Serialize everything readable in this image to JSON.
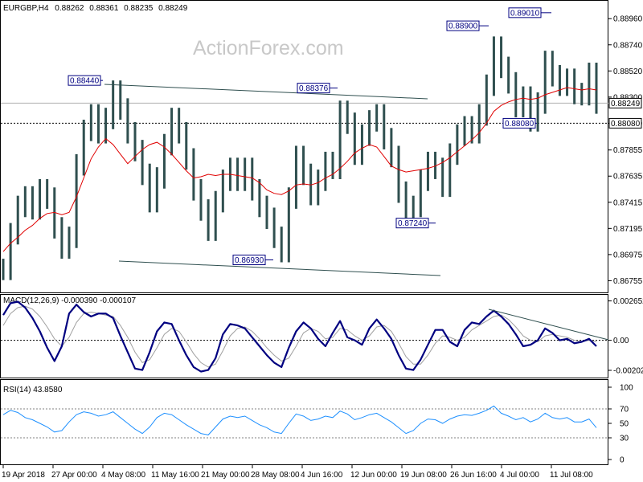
{
  "chart_data": [
    {
      "type": "line",
      "panel": "price",
      "title": "EURGBP,H4",
      "ohlc": {
        "open": "0.88262",
        "high": "0.88361",
        "low": "0.88235",
        "close": "0.88249"
      },
      "watermark": "ActionForex.com",
      "ylim": [
        0.8667,
        0.8909
      ],
      "yticks": [
        "0.88960",
        "0.88740",
        "0.88520",
        "0.88300",
        "0.88080",
        "0.87855",
        "0.87635",
        "0.87415",
        "0.87195",
        "0.86975",
        "0.86755"
      ],
      "current_price": "0.88249",
      "reference_level": "0.88080",
      "x_labels": [
        "19 Apr 2018",
        "27 Apr 00:00",
        "4 May 08:00",
        "11 May 16:00",
        "21 May 00:00",
        "28 May 08:00",
        "4 Jun 16:00",
        "12 Jun 00:00",
        "19 Jun 08:00",
        "26 Jun 16:00",
        "4 Jul 00:00",
        "11 Jul 08:00"
      ],
      "series": [
        {
          "values": [
            0.8685,
            0.8715,
            0.8738,
            0.8746,
            0.8736,
            0.8752,
            0.8745,
            0.872,
            0.8703,
            0.8712,
            0.8773,
            0.8802,
            0.8815,
            0.88,
            0.8812,
            0.8835,
            0.882,
            0.88,
            0.8785,
            0.8765,
            0.8742,
            0.8762,
            0.879,
            0.8812,
            0.88,
            0.8778,
            0.8752,
            0.8735,
            0.8718,
            0.8742,
            0.876,
            0.877,
            0.876,
            0.877,
            0.8752,
            0.8738,
            0.8728,
            0.8712,
            0.87,
            0.8745,
            0.878,
            0.8765,
            0.8748,
            0.876,
            0.8775,
            0.877,
            0.8818,
            0.8808,
            0.8782,
            0.8798,
            0.881,
            0.8815,
            0.8795,
            0.878,
            0.875,
            0.873,
            0.8738,
            0.876,
            0.8775,
            0.877,
            0.8755,
            0.8782,
            0.8798,
            0.8805,
            0.88,
            0.8815,
            0.884,
            0.8872,
            0.8855,
            0.8842,
            0.8822,
            0.883,
            0.881,
            0.8825,
            0.886,
            0.8848,
            0.884,
            0.8845,
            0.8833,
            0.8832,
            0.885,
            0.8825
          ]
        },
        {
          "values": [
            0.87,
            0.8707,
            0.8712,
            0.8718,
            0.8722,
            0.8728,
            0.8732,
            0.8733,
            0.8731,
            0.8733,
            0.8746,
            0.8762,
            0.8778,
            0.8788,
            0.8795,
            0.879,
            0.8782,
            0.8774,
            0.878,
            0.8786,
            0.879,
            0.8792,
            0.8788,
            0.8782,
            0.8775,
            0.8768,
            0.8762,
            0.8763,
            0.8765,
            0.8764,
            0.8765,
            0.8765,
            0.8764,
            0.8763,
            0.8762,
            0.8758,
            0.8752,
            0.8749,
            0.8748,
            0.8751,
            0.8756,
            0.8757,
            0.8756,
            0.8758,
            0.8762,
            0.8765,
            0.877,
            0.8776,
            0.8783,
            0.8787,
            0.879,
            0.8788,
            0.878,
            0.8772,
            0.8769,
            0.8767,
            0.8768,
            0.8769,
            0.877,
            0.8772,
            0.8775,
            0.8779,
            0.8784,
            0.8789,
            0.8794,
            0.88,
            0.8808,
            0.8818,
            0.8823,
            0.8826,
            0.8828,
            0.8829,
            0.8828,
            0.8829,
            0.8832,
            0.8834,
            0.8836,
            0.8838,
            0.8837,
            0.8836,
            0.8837,
            0.8836
          ]
        }
      ],
      "annotations": [
        "0.88440",
        "0.88376",
        "0.88900",
        "0.89010",
        "0.86930",
        "0.87240",
        "0.88080"
      ]
    },
    {
      "type": "line",
      "panel": "macd",
      "title": "MACD(12,26,9) -0.000390 -0.000107",
      "ylim": [
        -0.0024,
        0.0029
      ],
      "yticks": [
        "0.002652",
        "0.00",
        "-0.002021"
      ],
      "series": [
        {
          "values": [
            0.0017,
            0.0025,
            0.0026,
            0.0022,
            0.0015,
            0.0006,
            -0.0005,
            -0.0014,
            -0.0004,
            0.0018,
            0.0024,
            0.0019,
            0.0016,
            0.0018,
            0.0018,
            0.0015,
            0.0003,
            -0.0008,
            -0.0019,
            -0.002,
            -0.0008,
            0.0006,
            0.0012,
            0.0011,
            0.0,
            -0.001,
            -0.0018,
            -0.0021,
            -0.002,
            -0.0012,
            0.0004,
            0.0011,
            0.001,
            0.0008,
            0.0002,
            -0.0004,
            -0.001,
            -0.0015,
            -0.0018,
            -0.0005,
            0.0006,
            0.0012,
            0.0008,
            0.0001,
            -0.0004,
            0.0005,
            0.0013,
            0.0002,
            0.0,
            -0.0003,
            0.0008,
            0.0014,
            0.0008,
            0.0001,
            -0.001,
            -0.0019,
            -0.002,
            -0.0013,
            -0.0003,
            0.0007,
            0.0007,
            -0.0001,
            -0.0004,
            0.0007,
            0.0012,
            0.0011,
            0.0016,
            0.002,
            0.0016,
            0.0011,
            0.0004,
            -0.0004,
            -0.0003,
            0.0,
            0.0008,
            0.0005,
            0.0,
            0.0001,
            -0.0002,
            -0.0001,
            0.0001,
            -0.0004
          ]
        },
        {
          "values": [
            0.001,
            0.0018,
            0.0022,
            0.0023,
            0.0021,
            0.0016,
            0.0009,
            0.0001,
            -0.0004,
            0.0002,
            0.0012,
            0.0018,
            0.0019,
            0.0018,
            0.0017,
            0.0016,
            0.001,
            0.0002,
            -0.0008,
            -0.0015,
            -0.0013,
            -0.0005,
            0.0004,
            0.0008,
            0.0006,
            -0.0001,
            -0.0009,
            -0.0015,
            -0.0018,
            -0.0016,
            -0.0007,
            0.0003,
            0.0008,
            0.0009,
            0.0006,
            0.0001,
            -0.0005,
            -0.001,
            -0.0014,
            -0.0012,
            -0.0004,
            0.0005,
            0.0008,
            0.0006,
            0.0001,
            0.0002,
            0.0008,
            0.0007,
            0.0003,
            0.0,
            0.0003,
            0.0009,
            0.001,
            0.0006,
            -0.0002,
            -0.0011,
            -0.0016,
            -0.0016,
            -0.001,
            -0.0002,
            0.0003,
            0.0002,
            0.0,
            0.0002,
            0.0007,
            0.001,
            0.0013,
            0.0016,
            0.0017,
            0.0014,
            0.0009,
            0.0003,
            0.0,
            -0.0001,
            0.0003,
            0.0004,
            0.0003,
            0.0002,
            0.0,
            -0.0001,
            0.0,
            -0.0001
          ]
        }
      ]
    },
    {
      "type": "line",
      "panel": "rsi",
      "title": "RSI(14) 43.8580",
      "ylim": [
        0,
        100
      ],
      "yticks": [
        "100",
        "70",
        "50",
        "30",
        "0"
      ],
      "levels": [
        70,
        30
      ],
      "series": [
        {
          "values": [
            62,
            68,
            65,
            58,
            55,
            50,
            45,
            38,
            40,
            52,
            62,
            66,
            64,
            60,
            62,
            66,
            58,
            50,
            42,
            36,
            45,
            58,
            64,
            62,
            55,
            48,
            42,
            36,
            34,
            45,
            56,
            60,
            58,
            60,
            54,
            48,
            44,
            38,
            36,
            50,
            63,
            60,
            54,
            56,
            60,
            58,
            67,
            63,
            55,
            58,
            62,
            64,
            58,
            52,
            44,
            36,
            40,
            50,
            56,
            55,
            50,
            56,
            60,
            62,
            61,
            64,
            68,
            74,
            64,
            60,
            55,
            58,
            52,
            56,
            64,
            58,
            56,
            58,
            52,
            52,
            56,
            44
          ]
        }
      ]
    }
  ],
  "colors": {
    "price_bars": "#2f4f4f",
    "moving_average": "#e00000",
    "macd_line": "#000080",
    "signal_line": "#a0a0a0",
    "rsi_line": "#1e90ff",
    "annotation_border": "#000080",
    "trendline": "#2f4f4f"
  }
}
